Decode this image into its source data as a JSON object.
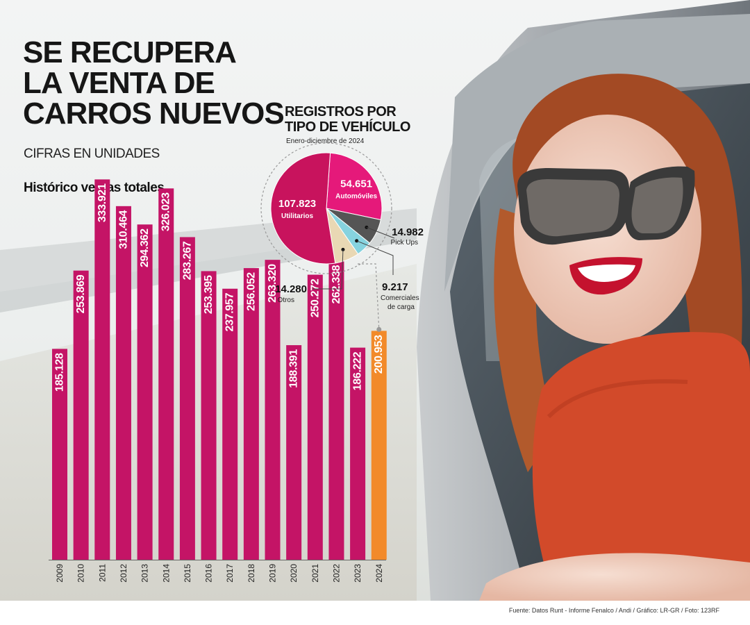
{
  "header": {
    "title_line1": "SE RECUPERA",
    "title_line2": "LA VENTA DE",
    "title_line3": "CARROS NUEVOS",
    "units": "CIFRAS EN UNIDADES",
    "history_label": "Histórico ventas totales"
  },
  "donut": {
    "title_line1": "REGISTROS POR",
    "title_line2": "TIPO DE VEHÍCULO",
    "period": "Enero-diciembre de 2024"
  },
  "colors": {
    "bar": "#c41466",
    "bar_highlight": "#f28a2a",
    "utilitarios": "#c8135d",
    "automoviles": "#e5197a",
    "pickups": "#555555",
    "comerciales": "#86d3df",
    "otros": "#e9d8b4"
  },
  "chart_data": [
    {
      "type": "bar",
      "title": "Histórico ventas totales",
      "categories": [
        "2009",
        "2010",
        "2011",
        "2012",
        "2013",
        "2014",
        "2015",
        "2016",
        "2017",
        "2018",
        "2019",
        "2020",
        "2021",
        "2022",
        "2023",
        "2024"
      ],
      "values": [
        185128,
        253869,
        333921,
        310464,
        294362,
        326023,
        283267,
        253395,
        237957,
        256052,
        263320,
        188391,
        250272,
        262338,
        186222,
        200953
      ],
      "value_labels": [
        "185.128",
        "253.869",
        "333.921",
        "310.464",
        "294.362",
        "326.023",
        "283.267",
        "253.395",
        "237.957",
        "256.052",
        "263.320",
        "188.391",
        "250.272",
        "262.338",
        "186.222",
        "200.953"
      ],
      "highlight_category": "2024",
      "ylim": [
        0,
        400000
      ],
      "grid": false
    },
    {
      "type": "pie",
      "title": "REGISTROS POR TIPO DE VEHÍCULO",
      "subtitle": "Enero-diciembre de 2024",
      "slices": [
        {
          "label": "Automóviles",
          "value": 54651,
          "value_label": "54.651"
        },
        {
          "label": "Pick Ups",
          "value": 14982,
          "value_label": "14.982"
        },
        {
          "label": "Comerciales de carga",
          "value": 9217,
          "value_label": "9.217"
        },
        {
          "label": "Otros",
          "value": 14280,
          "value_label": "14.280"
        },
        {
          "label": "Utilitarios",
          "value": 107823,
          "value_label": "107.823"
        }
      ]
    }
  ],
  "footer": {
    "source": "Fuente: Datos Runt - Informe Fenalco / Andi / Gráfico: LR-GR / Foto: 123RF"
  }
}
